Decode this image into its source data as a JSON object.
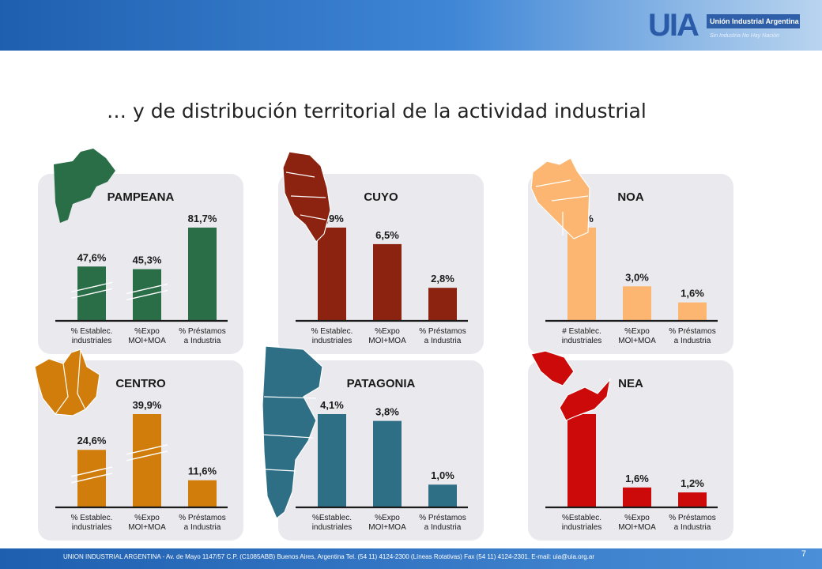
{
  "header": {
    "logo_mark": "UIA",
    "logo_name": "Unión Industrial Argentina",
    "logo_tagline": "Sin Industria No Hay Nación"
  },
  "title": "… y de distribución territorial de la actividad industrial",
  "footer": {
    "text": "UNION INDUSTRIAL ARGENTINA - Av. de Mayo 1147/57 C.P. (C1085ABB) Buenos Aires, Argentina Tel. (54 11) 4124-2300 (Líneas Rotativas) Fax (54 11) 4124-2301. E-mail: uia@uia.org.ar",
    "page_number": "7"
  },
  "chart_data": [
    {
      "type": "bar",
      "title": "PAMPEANA",
      "color": "#2a6e48",
      "categories": [
        "% Establec. industriales",
        "%Expo MOI+MOA",
        "% Préstamos a Industria"
      ],
      "values": [
        47.6,
        45.3,
        81.7
      ],
      "labels": [
        "47,6%",
        "45,3%",
        "81,7%"
      ],
      "broken_axis": [
        true,
        true,
        false
      ]
    },
    {
      "type": "bar",
      "title": "CUYO",
      "color": "#8b2310",
      "categories": [
        "% Establec. industriales",
        "%Expo MOI+MOA",
        "% Préstamos a Industria"
      ],
      "values": [
        7.9,
        6.5,
        2.8
      ],
      "labels": [
        "7,9%",
        "6,5%",
        "2,8%"
      ],
      "broken_axis": [
        false,
        false,
        false
      ]
    },
    {
      "type": "bar",
      "title": "NOA",
      "color": "#fcb671",
      "categories": [
        "# Establec. industriales",
        "%Expo MOI+MOA",
        "% Préstamos a Industria"
      ],
      "values": [
        8.1,
        3.0,
        1.6
      ],
      "labels": [
        "8,1%",
        "3,0%",
        "1,6%"
      ],
      "broken_axis": [
        false,
        false,
        false
      ]
    },
    {
      "type": "bar",
      "title": "CENTRO",
      "color": "#d07d0b",
      "categories": [
        "% Establec. industriales",
        "%Expo MOI+MOA",
        "% Préstamos a Industria"
      ],
      "values": [
        24.6,
        39.9,
        11.6
      ],
      "labels": [
        "24,6%",
        "39,9%",
        "11,6%"
      ],
      "broken_axis": [
        true,
        true,
        false
      ]
    },
    {
      "type": "bar",
      "title": "PATAGONIA",
      "color": "#2e6f86",
      "categories": [
        "%Establec. industriales",
        "%Expo MOI+MOA",
        "% Préstamos a Industria"
      ],
      "values": [
        4.1,
        3.8,
        1.0
      ],
      "labels": [
        "4,1%",
        "3,8%",
        "1,0%"
      ],
      "broken_axis": [
        false,
        false,
        false
      ]
    },
    {
      "type": "bar",
      "title": "NEA",
      "color": "#cc0a0a",
      "categories": [
        "%Establec. industriales",
        "%Expo MOI+MOA",
        "% Préstamos a Industria"
      ],
      "values": [
        7.5,
        1.6,
        1.2
      ],
      "labels": [
        "7,5%",
        "1,6%",
        "1,2%"
      ],
      "broken_axis": [
        false,
        false,
        false
      ]
    }
  ]
}
